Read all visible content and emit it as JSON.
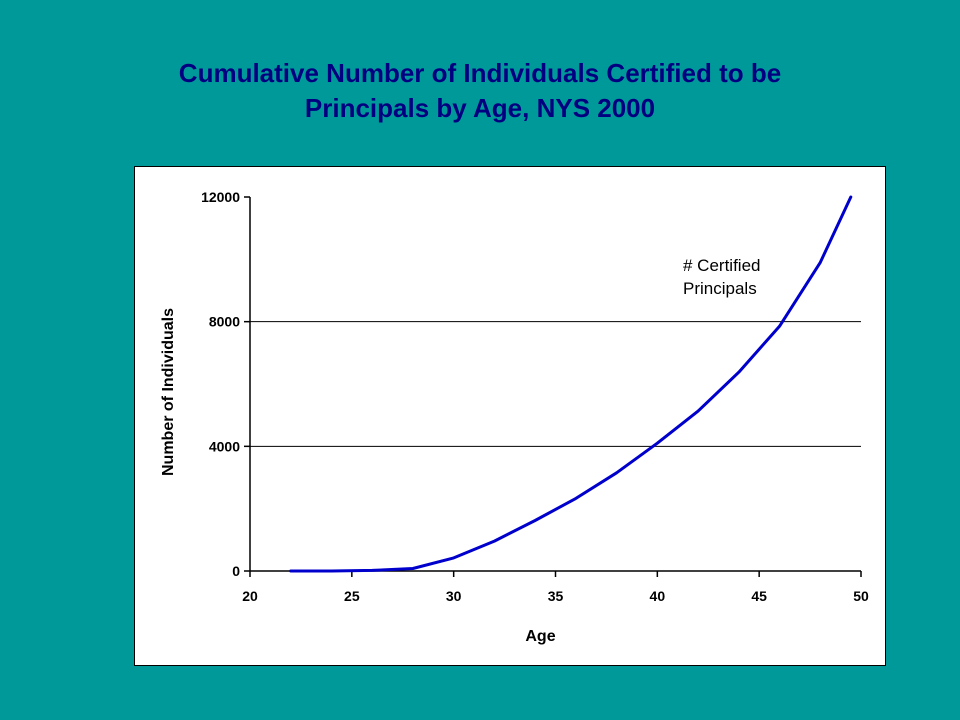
{
  "slide": {
    "background_color": "#009999",
    "title_color": "#000080",
    "title_lines": [
      "Cumulative Number of Individuals Certified to be",
      "Principals by Age, NYS 2000"
    ]
  },
  "chart_data": {
    "type": "line",
    "title": "Cumulative Number of Individuals Certified to be Principals by Age, NYS 2000",
    "xlabel": "Age",
    "ylabel": "Number of Individuals",
    "xlim": [
      20,
      50
    ],
    "ylim": [
      0,
      12000
    ],
    "x_ticks": [
      20,
      25,
      30,
      35,
      40,
      45,
      50
    ],
    "y_ticks": [
      0,
      4000,
      8000,
      12000
    ],
    "y_gridlines": [
      4000,
      8000
    ],
    "grid": "horizontal",
    "legend_placement": "top-right",
    "series": [
      {
        "name": "# Certified Principals",
        "name_lines": [
          "# Certified",
          "Principals"
        ],
        "color": "#0000CC",
        "x": [
          22,
          24,
          26,
          28,
          30,
          32,
          34,
          36,
          38,
          40,
          42,
          44,
          46,
          48,
          49.5
        ],
        "y": [
          0,
          0,
          20,
          80,
          420,
          960,
          1620,
          2330,
          3150,
          4100,
          5130,
          6380,
          7850,
          9900,
          12000
        ]
      }
    ]
  }
}
